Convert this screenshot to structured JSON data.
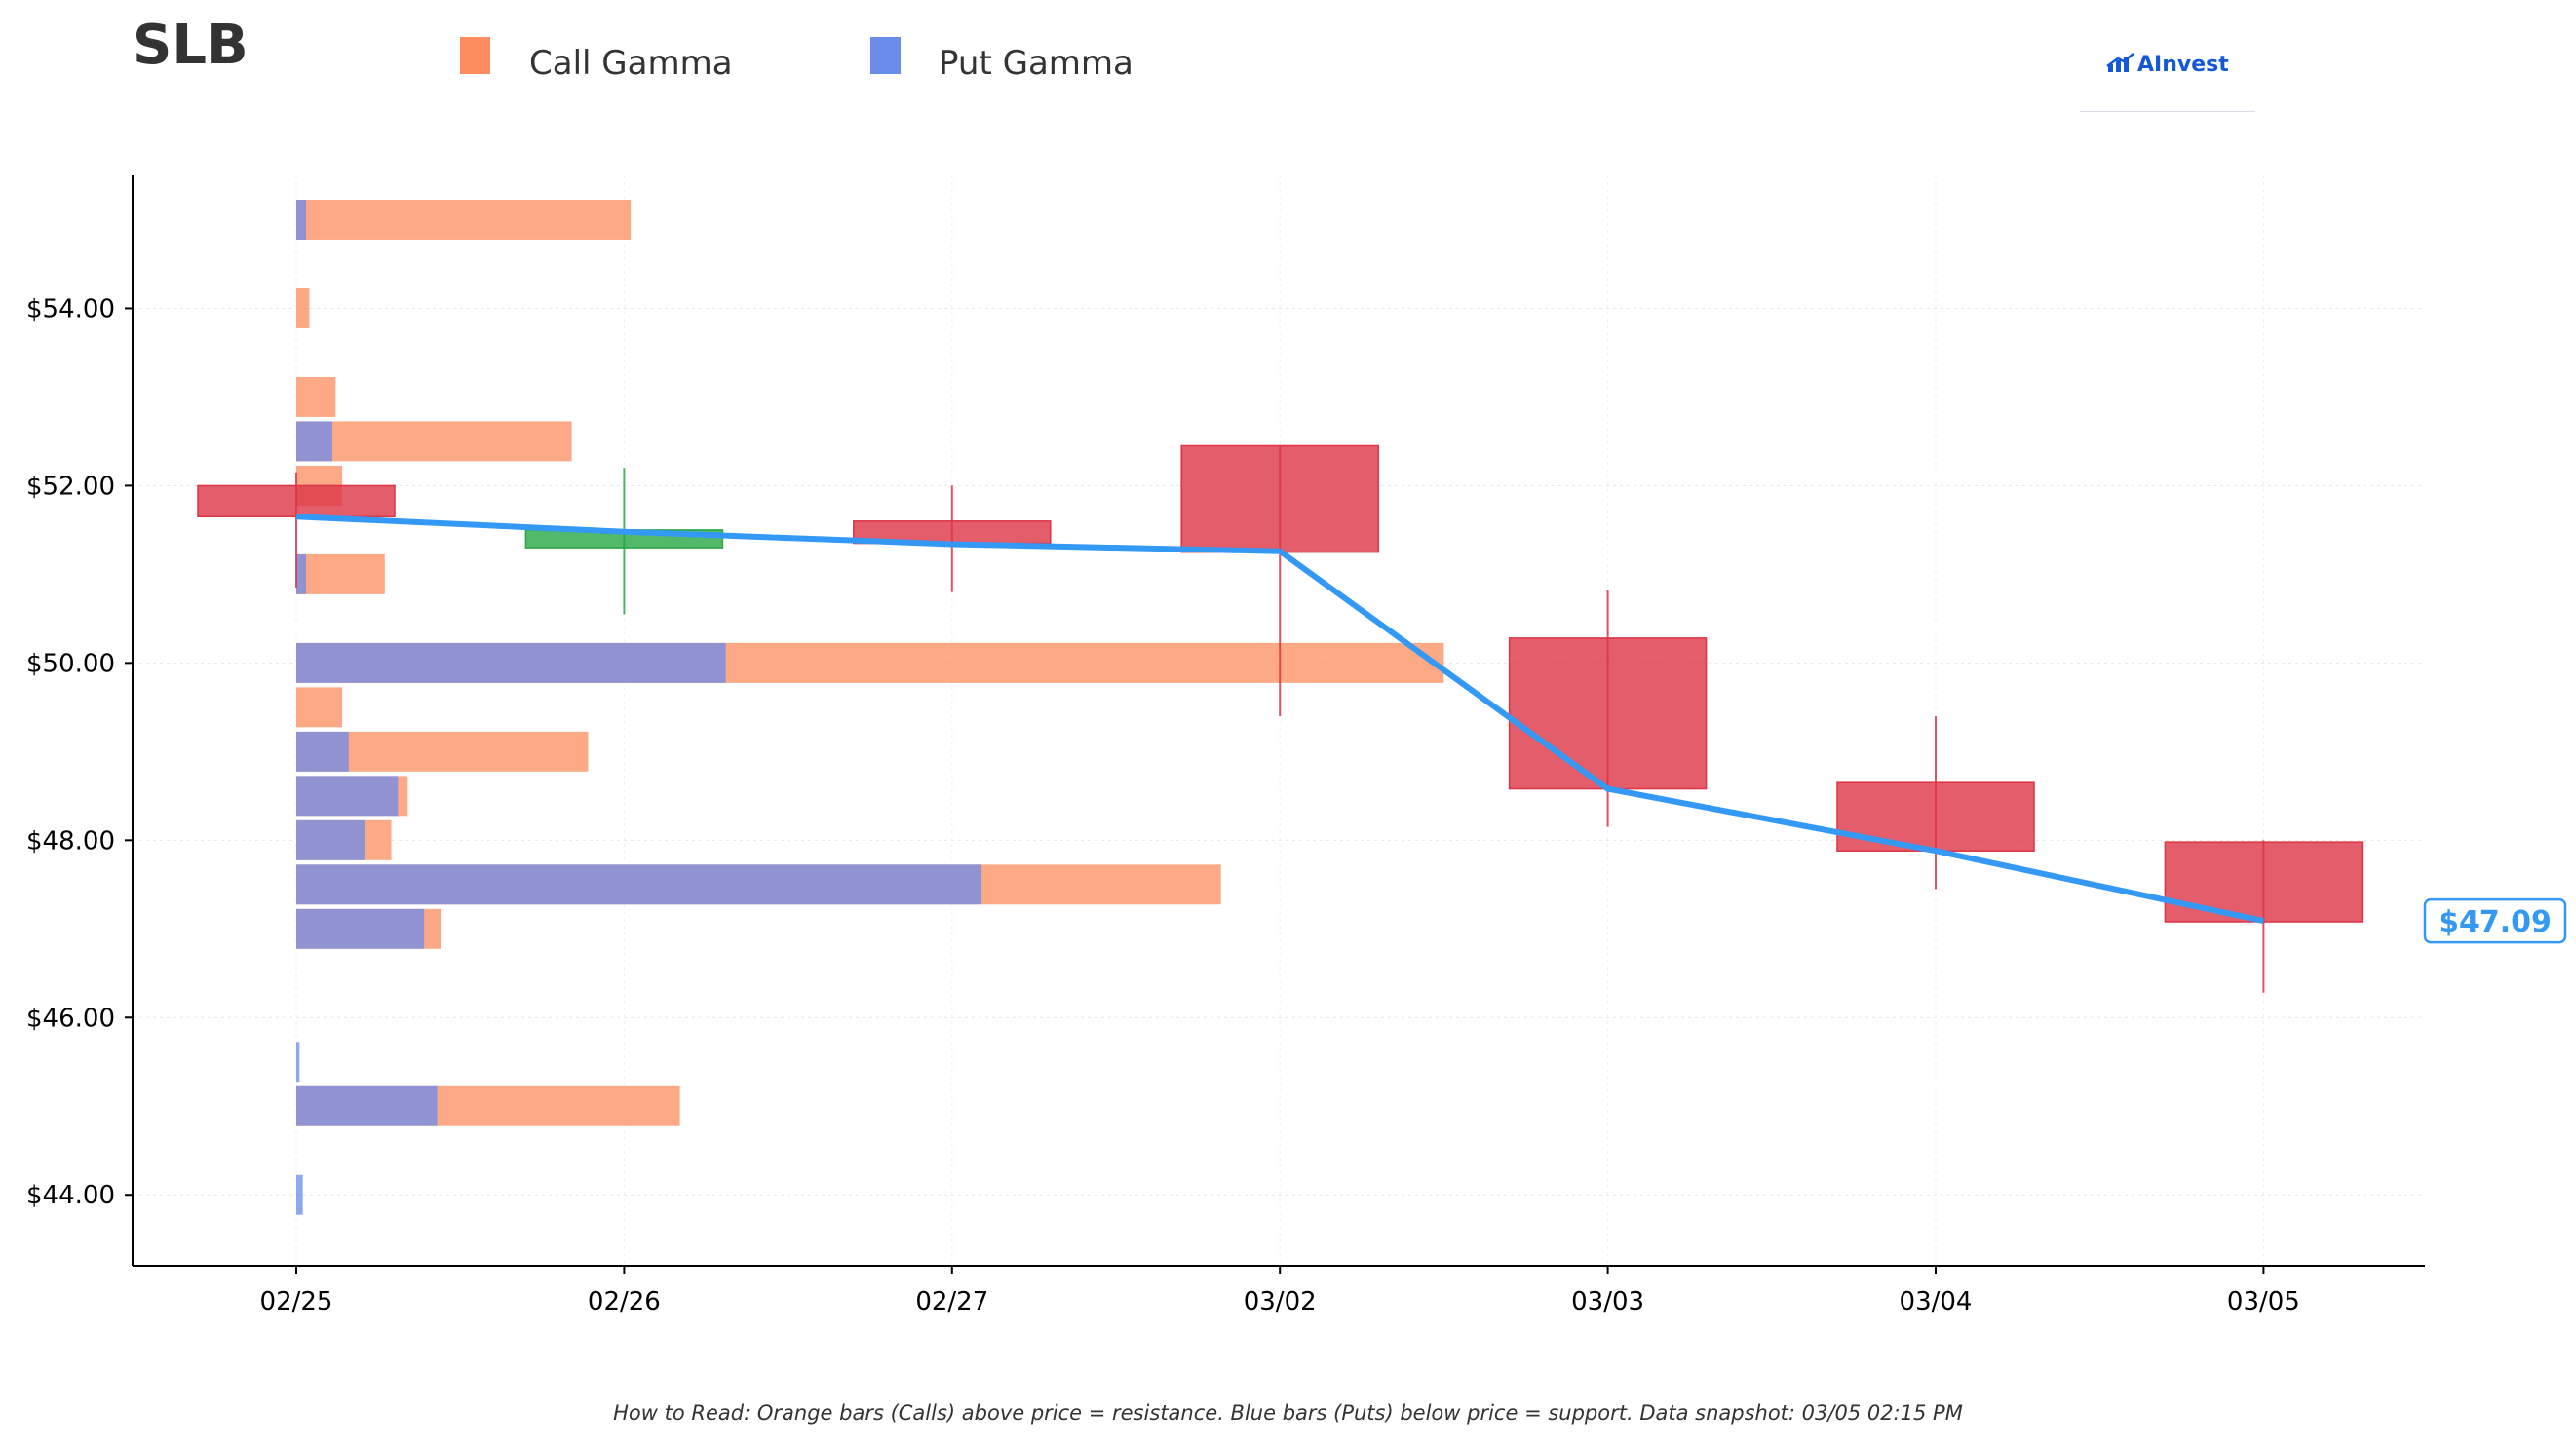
{
  "header": {
    "ticker": "SLB",
    "brand": "AInvest"
  },
  "legend": {
    "items": [
      {
        "label": "Call Gamma",
        "color": "#fd8c5e"
      },
      {
        "label": "Put Gamma",
        "color": "#6b8bea"
      }
    ]
  },
  "footnote": "How to Read: Orange bars (Calls) above price = resistance. Blue bars (Puts) below price = support. Data snapshot: 03/05 02:15 PM",
  "chart_data": {
    "type": "candlestick",
    "title": "SLB",
    "xlabel": "",
    "ylabel": "",
    "ylim": [
      43.2,
      55.5
    ],
    "y_ticks": [
      44,
      46,
      48,
      50,
      52,
      54
    ],
    "y_tick_labels": [
      "$44.00",
      "$46.00",
      "$48.00",
      "$50.00",
      "$52.00",
      "$54.00"
    ],
    "grid": true,
    "legend_position": "top",
    "categories": [
      "02/25",
      "02/26",
      "02/27",
      "03/02",
      "03/03",
      "03/04",
      "03/05"
    ],
    "candles": [
      {
        "date": "02/25",
        "open": 52.0,
        "close": 51.65,
        "high": 52.15,
        "low": 50.85
      },
      {
        "date": "02/26",
        "open": 51.3,
        "close": 51.5,
        "high": 52.2,
        "low": 50.55
      },
      {
        "date": "02/27",
        "open": 51.6,
        "close": 51.35,
        "high": 52.0,
        "low": 50.8
      },
      {
        "date": "03/02",
        "open": 52.45,
        "close": 51.25,
        "high": 52.45,
        "low": 49.4
      },
      {
        "date": "03/03",
        "open": 50.28,
        "close": 48.58,
        "high": 50.82,
        "low": 48.15
      },
      {
        "date": "03/04",
        "open": 48.65,
        "close": 47.88,
        "high": 49.4,
        "low": 47.45
      },
      {
        "date": "03/05",
        "open": 47.98,
        "close": 47.08,
        "high": 48.0,
        "low": 46.28
      }
    ],
    "close_line": {
      "color": "#3498f5",
      "values": [
        51.65,
        51.48,
        51.34,
        51.26,
        48.58,
        47.88,
        47.09
      ]
    },
    "last_price_label": "$47.09",
    "gamma_x_unit": "days",
    "gamma_bars": [
      {
        "strike": 55.0,
        "call": 1.02,
        "put": 0.03
      },
      {
        "strike": 54.0,
        "call": 0.04,
        "put": 0.0
      },
      {
        "strike": 53.0,
        "call": 0.12,
        "put": 0.0
      },
      {
        "strike": 52.5,
        "call": 0.84,
        "put": 0.11
      },
      {
        "strike": 52.0,
        "call": 0.14,
        "put": 0.0
      },
      {
        "strike": 51.0,
        "call": 0.27,
        "put": 0.03
      },
      {
        "strike": 50.0,
        "call": 3.5,
        "put": 1.31
      },
      {
        "strike": 49.5,
        "call": 0.14,
        "put": 0.0
      },
      {
        "strike": 49.0,
        "call": 0.89,
        "put": 0.16
      },
      {
        "strike": 48.5,
        "call": 0.34,
        "put": 0.31
      },
      {
        "strike": 48.0,
        "call": 0.29,
        "put": 0.21
      },
      {
        "strike": 47.5,
        "call": 2.82,
        "put": 2.09
      },
      {
        "strike": 47.0,
        "call": 0.44,
        "put": 0.39
      },
      {
        "strike": 45.5,
        "call": 0.0,
        "put": 0.01
      },
      {
        "strike": 45.0,
        "call": 1.17,
        "put": 0.43
      },
      {
        "strike": 44.0,
        "call": 0.0,
        "put": 0.02
      }
    ],
    "colors": {
      "call": "#fd8c5e",
      "put": "#6b8bea",
      "down": "#dc3545",
      "up": "#28a745",
      "line": "#3498f5"
    }
  }
}
